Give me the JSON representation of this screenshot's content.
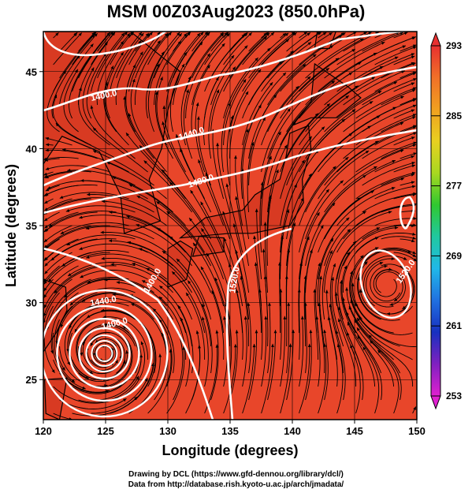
{
  "title": "MSM 00Z03Aug2023 (850.0hPa)",
  "map": {
    "x_label": "Longitude (degrees)",
    "y_label": "Latitude  (degrees)",
    "lon_range": [
      120,
      150
    ],
    "lat_range": [
      22.4,
      47.6
    ],
    "lon_ticks": [
      "120",
      "125",
      "130",
      "135",
      "140",
      "145",
      "150"
    ],
    "lat_ticks": [
      "25",
      "30",
      "35",
      "40",
      "45"
    ],
    "field_color": "#e8462a",
    "contour_color": "#ffffff",
    "streamline_color": "#000000",
    "contour_labels": [
      "1400.0",
      "1440.0",
      "1480.0",
      "1400.0",
      "1440.0",
      "1400.0",
      "1520.0",
      "1520.0"
    ],
    "typhoon_center": {
      "lon": 124.9,
      "lat": 26.7
    },
    "high_center": {
      "lon": 147.5,
      "lat": 31.2
    }
  },
  "colorbar": {
    "tick_labels": [
      "293",
      "285",
      "277",
      "269",
      "261",
      "253"
    ],
    "colors": [
      "#e83030",
      "#f07028",
      "#f0a020",
      "#e8d020",
      "#a8d820",
      "#30c830",
      "#20c8a0",
      "#20b8e8",
      "#2070e0",
      "#1830c0",
      "#8020c0",
      "#e020d0"
    ]
  },
  "credit": {
    "line1": "Drawing by DCL (https://www.gfd-dennou.org/library/dcl/)",
    "line2": "Data from http://database.rish.kyoto-u.ac.jp/arch/jmadata/"
  }
}
